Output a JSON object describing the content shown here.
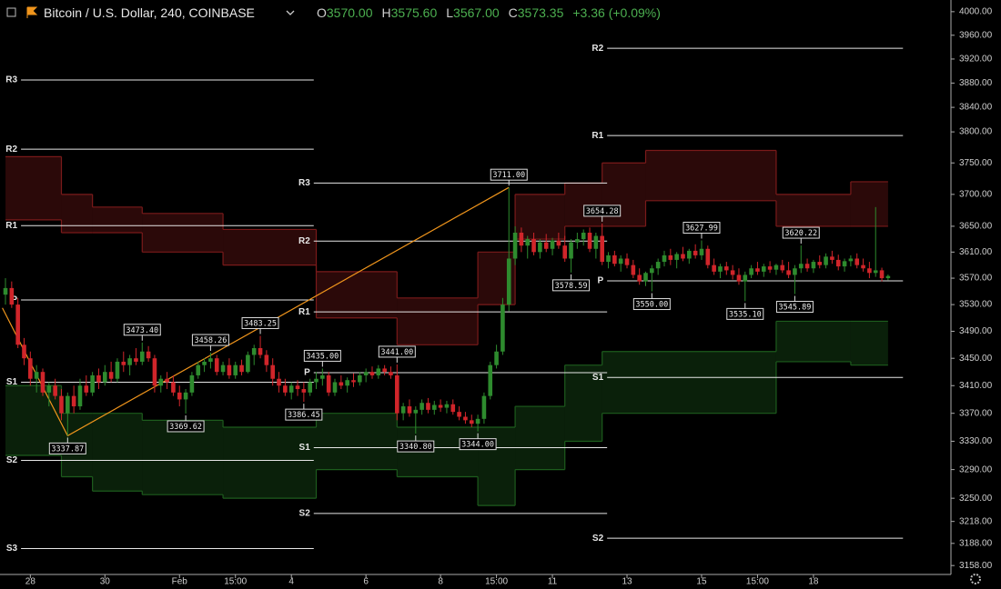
{
  "chart_data": {
    "type": "candlestick",
    "title": "Bitcoin / U.S. Dollar, 240, COINBASE",
    "legend_values": [
      {
        "label": "O",
        "value": "3570.00"
      },
      {
        "label": "H",
        "value": "3575.60"
      },
      {
        "label": "L",
        "value": "3567.00"
      },
      {
        "label": "C",
        "value": "3573.35"
      }
    ],
    "change": "+3.36 (+0.09%)",
    "log_scale": true,
    "up_color": "#2e8b2e",
    "down_color": "#d0252a",
    "zigzag_color": "#f0951c",
    "pivot_color": "#e6e6e6",
    "xlim": [
      -0.88,
      152.12
    ],
    "ylim": [
      3146,
      4020
    ],
    "yticks": [
      {
        "value": 4000,
        "label": "4000.00"
      },
      {
        "value": 3960,
        "label": "3960.00"
      },
      {
        "value": 3920,
        "label": "3920.00"
      },
      {
        "value": 3880,
        "label": "3880.00"
      },
      {
        "value": 3840,
        "label": "3840.00"
      },
      {
        "value": 3800,
        "label": "3800.00"
      },
      {
        "value": 3750,
        "label": "3750.00"
      },
      {
        "value": 3700,
        "label": "3700.00"
      },
      {
        "value": 3650,
        "label": "3650.00"
      },
      {
        "value": 3610,
        "label": "3610.00"
      },
      {
        "value": 3570,
        "label": "3570.00"
      },
      {
        "value": 3530,
        "label": "3530.00"
      },
      {
        "value": 3490,
        "label": "3490.00"
      },
      {
        "value": 3450,
        "label": "3450.00"
      },
      {
        "value": 3410,
        "label": "3410.00"
      },
      {
        "value": 3370,
        "label": "3370.00"
      },
      {
        "value": 3330,
        "label": "3330.00"
      },
      {
        "value": 3290,
        "label": "3290.00"
      },
      {
        "value": 3250,
        "label": "3250.00"
      },
      {
        "value": 3218,
        "label": "3218.00"
      },
      {
        "value": 3188,
        "label": "3188.00"
      },
      {
        "value": 3158,
        "label": "3158.00"
      }
    ],
    "xticks": [
      {
        "value": 4,
        "label": "28"
      },
      {
        "value": 16,
        "label": "30"
      },
      {
        "value": 28,
        "label": "Feb"
      },
      {
        "value": 37,
        "label": "15:00"
      },
      {
        "value": 46,
        "label": "4"
      },
      {
        "value": 58,
        "label": "6"
      },
      {
        "value": 70,
        "label": "8"
      },
      {
        "value": 79,
        "label": "15:00"
      },
      {
        "value": 88,
        "label": "11"
      },
      {
        "value": 100,
        "label": "13"
      },
      {
        "value": 112,
        "label": "15"
      },
      {
        "value": 121,
        "label": "15:00"
      },
      {
        "value": 130,
        "label": "18"
      }
    ],
    "candles": [
      [
        3545,
        3570,
        3530,
        3555
      ],
      [
        3555,
        3565,
        3525,
        3530
      ],
      [
        3530,
        3540,
        3465,
        3470
      ],
      [
        3470,
        3480,
        3440,
        3450
      ],
      [
        3450,
        3460,
        3410,
        3420
      ],
      [
        3420,
        3440,
        3400,
        3430
      ],
      [
        3430,
        3435,
        3395,
        3400
      ],
      [
        3400,
        3415,
        3380,
        3410
      ],
      [
        3410,
        3420,
        3390,
        3395
      ],
      [
        3395,
        3405,
        3360,
        3370
      ],
      [
        3370,
        3400,
        3337.87,
        3395
      ],
      [
        3395,
        3410,
        3370,
        3380
      ],
      [
        3380,
        3420,
        3375,
        3410
      ],
      [
        3410,
        3425,
        3395,
        3400
      ],
      [
        3400,
        3430,
        3395,
        3425
      ],
      [
        3425,
        3435,
        3405,
        3415
      ],
      [
        3415,
        3440,
        3410,
        3430
      ],
      [
        3430,
        3445,
        3415,
        3420
      ],
      [
        3420,
        3450,
        3415,
        3445
      ],
      [
        3445,
        3460,
        3430,
        3440
      ],
      [
        3440,
        3455,
        3425,
        3450
      ],
      [
        3450,
        3465,
        3440,
        3445
      ],
      [
        3445,
        3473.4,
        3440,
        3460
      ],
      [
        3460,
        3468,
        3445,
        3450
      ],
      [
        3450,
        3455,
        3400,
        3410
      ],
      [
        3410,
        3425,
        3400,
        3420
      ],
      [
        3420,
        3430,
        3405,
        3415
      ],
      [
        3415,
        3425,
        3395,
        3400
      ],
      [
        3400,
        3410,
        3380,
        3390
      ],
      [
        3390,
        3405,
        3369.62,
        3400
      ],
      [
        3400,
        3430,
        3395,
        3425
      ],
      [
        3425,
        3445,
        3420,
        3440
      ],
      [
        3440,
        3450,
        3430,
        3445
      ],
      [
        3445,
        3458.26,
        3435,
        3450
      ],
      [
        3450,
        3455,
        3425,
        3430
      ],
      [
        3430,
        3445,
        3425,
        3440
      ],
      [
        3440,
        3450,
        3420,
        3425
      ],
      [
        3425,
        3445,
        3420,
        3440
      ],
      [
        3440,
        3448,
        3425,
        3430
      ],
      [
        3430,
        3460,
        3428,
        3455
      ],
      [
        3455,
        3470,
        3440,
        3465
      ],
      [
        3465,
        3483.25,
        3450,
        3455
      ],
      [
        3455,
        3462,
        3430,
        3440
      ],
      [
        3440,
        3450,
        3410,
        3420
      ],
      [
        3420,
        3430,
        3400,
        3410
      ],
      [
        3410,
        3420,
        3395,
        3400
      ],
      [
        3400,
        3415,
        3390,
        3410
      ],
      [
        3410,
        3418,
        3395,
        3405
      ],
      [
        3405,
        3415,
        3386.45,
        3400
      ],
      [
        3400,
        3420,
        3395,
        3415
      ],
      [
        3415,
        3430,
        3405,
        3420
      ],
      [
        3420,
        3435,
        3410,
        3425
      ],
      [
        3425,
        3430,
        3395,
        3400
      ],
      [
        3400,
        3420,
        3395,
        3415
      ],
      [
        3415,
        3425,
        3405,
        3410
      ],
      [
        3410,
        3422,
        3400,
        3418
      ],
      [
        3418,
        3428,
        3408,
        3415
      ],
      [
        3415,
        3430,
        3410,
        3425
      ],
      [
        3425,
        3435,
        3415,
        3430
      ],
      [
        3430,
        3438,
        3420,
        3425
      ],
      [
        3425,
        3440,
        3420,
        3435
      ],
      [
        3435,
        3440,
        3425,
        3430
      ],
      [
        3430,
        3438,
        3420,
        3425
      ],
      [
        3425,
        3441,
        3360,
        3370
      ],
      [
        3370,
        3385,
        3360,
        3380
      ],
      [
        3380,
        3390,
        3365,
        3370
      ],
      [
        3370,
        3380,
        3340.8,
        3375
      ],
      [
        3375,
        3390,
        3368,
        3385
      ],
      [
        3385,
        3392,
        3370,
        3375
      ],
      [
        3375,
        3388,
        3368,
        3382
      ],
      [
        3382,
        3390,
        3372,
        3378
      ],
      [
        3378,
        3388,
        3370,
        3383
      ],
      [
        3383,
        3390,
        3368,
        3372
      ],
      [
        3372,
        3380,
        3360,
        3365
      ],
      [
        3365,
        3372,
        3355,
        3360
      ],
      [
        3360,
        3368,
        3350,
        3355
      ],
      [
        3355,
        3368,
        3344,
        3362
      ],
      [
        3362,
        3400,
        3355,
        3395
      ],
      [
        3395,
        3445,
        3390,
        3440
      ],
      [
        3440,
        3470,
        3435,
        3460
      ],
      [
        3460,
        3540,
        3455,
        3530
      ],
      [
        3530,
        3711,
        3520,
        3600
      ],
      [
        3600,
        3650,
        3590,
        3640
      ],
      [
        3640,
        3648,
        3610,
        3620
      ],
      [
        3620,
        3635,
        3600,
        3630
      ],
      [
        3630,
        3640,
        3605,
        3610
      ],
      [
        3610,
        3630,
        3600,
        3625
      ],
      [
        3625,
        3638,
        3610,
        3615
      ],
      [
        3615,
        3632,
        3605,
        3628
      ],
      [
        3628,
        3640,
        3615,
        3620
      ],
      [
        3620,
        3635,
        3595,
        3600
      ],
      [
        3600,
        3630,
        3578.59,
        3625
      ],
      [
        3625,
        3640,
        3615,
        3630
      ],
      [
        3630,
        3645,
        3620,
        3640
      ],
      [
        3640,
        3648,
        3610,
        3615
      ],
      [
        3615,
        3640,
        3600,
        3635
      ],
      [
        3635,
        3654.28,
        3590,
        3595
      ],
      [
        3595,
        3610,
        3585,
        3605
      ],
      [
        3605,
        3612,
        3588,
        3592
      ],
      [
        3592,
        3605,
        3580,
        3600
      ],
      [
        3600,
        3608,
        3585,
        3590
      ],
      [
        3590,
        3598,
        3570,
        3575
      ],
      [
        3575,
        3585,
        3560,
        3565
      ],
      [
        3565,
        3580,
        3558,
        3578
      ],
      [
        3578,
        3590,
        3550,
        3585
      ],
      [
        3585,
        3600,
        3575,
        3595
      ],
      [
        3595,
        3612,
        3588,
        3605
      ],
      [
        3605,
        3615,
        3590,
        3598
      ],
      [
        3598,
        3610,
        3585,
        3607
      ],
      [
        3607,
        3618,
        3596,
        3600
      ],
      [
        3600,
        3615,
        3592,
        3612
      ],
      [
        3612,
        3622,
        3600,
        3605
      ],
      [
        3605,
        3627.99,
        3598,
        3615
      ],
      [
        3615,
        3620,
        3585,
        3590
      ],
      [
        3590,
        3600,
        3575,
        3580
      ],
      [
        3580,
        3592,
        3570,
        3588
      ],
      [
        3588,
        3595,
        3575,
        3582
      ],
      [
        3582,
        3590,
        3568,
        3575
      ],
      [
        3575,
        3585,
        3560,
        3565
      ],
      [
        3565,
        3580,
        3535.1,
        3575
      ],
      [
        3575,
        3590,
        3570,
        3585
      ],
      [
        3585,
        3595,
        3575,
        3580
      ],
      [
        3580,
        3592,
        3572,
        3588
      ],
      [
        3588,
        3596,
        3578,
        3583
      ],
      [
        3583,
        3592,
        3575,
        3590
      ],
      [
        3590,
        3598,
        3578,
        3582
      ],
      [
        3582,
        3595,
        3570,
        3575
      ],
      [
        3575,
        3590,
        3545.89,
        3585
      ],
      [
        3585,
        3620.22,
        3578,
        3592
      ],
      [
        3592,
        3600,
        3580,
        3585
      ],
      [
        3585,
        3598,
        3578,
        3595
      ],
      [
        3595,
        3605,
        3585,
        3590
      ],
      [
        3590,
        3608,
        3585,
        3603
      ],
      [
        3603,
        3612,
        3592,
        3598
      ],
      [
        3598,
        3606,
        3582,
        3588
      ],
      [
        3588,
        3600,
        3580,
        3596
      ],
      [
        3596,
        3605,
        3588,
        3600
      ],
      [
        3600,
        3608,
        3585,
        3590
      ],
      [
        3590,
        3600,
        3580,
        3585
      ],
      [
        3585,
        3595,
        3570,
        3578
      ],
      [
        3578,
        3680,
        3572,
        3582
      ],
      [
        3582,
        3586,
        3565,
        3570
      ],
      [
        3570,
        3575.6,
        3567,
        3573.35
      ]
    ],
    "bands": [
      {
        "color": "#7a1a1a",
        "x": [
          0,
          9,
          14,
          22,
          35,
          50,
          63,
          76,
          82,
          90,
          96,
          103,
          124,
          136,
          142
        ],
        "upper": [
          3760,
          3700,
          3680,
          3670,
          3645,
          3580,
          3540,
          3610,
          3700,
          3718,
          3750,
          3770,
          3700,
          3720,
          3720
        ],
        "lower": [
          3660,
          3640,
          3640,
          3610,
          3590,
          3510,
          3470,
          3530,
          3630,
          3650,
          3650,
          3690,
          3650,
          3650,
          3650
        ]
      },
      {
        "color": "#1d5c1d",
        "x": [
          0,
          9,
          14,
          22,
          35,
          50,
          63,
          76,
          82,
          90,
          96,
          103,
          124,
          136,
          142
        ],
        "upper": [
          3410,
          3370,
          3370,
          3360,
          3350,
          3370,
          3350,
          3350,
          3380,
          3440,
          3460,
          3460,
          3505,
          3505,
          3505
        ],
        "lower": [
          3310,
          3280,
          3260,
          3255,
          3250,
          3290,
          3280,
          3240,
          3290,
          3330,
          3370,
          3370,
          3445,
          3440,
          3440
        ]
      }
    ],
    "zigzag": {
      "x": [
        -0.5,
        10,
        81
      ],
      "values": [
        3525,
        3337.87,
        3711
      ]
    },
    "pivot_sets": [
      {
        "x": [
          2.5,
          49.6
        ],
        "levels": [
          {
            "name": "R3",
            "value": 3885
          },
          {
            "name": "R2",
            "value": 3772
          },
          {
            "name": "R1",
            "value": 3651
          },
          {
            "name": "P",
            "value": 3537
          },
          {
            "name": "S1",
            "value": 3415
          },
          {
            "name": "S2",
            "value": 3303
          },
          {
            "name": "S3",
            "value": 3181
          }
        ]
      },
      {
        "x": [
          49.6,
          96.8
        ],
        "levels": [
          {
            "name": "R3",
            "value": 3718
          },
          {
            "name": "R2",
            "value": 3627
          },
          {
            "name": "R1",
            "value": 3519
          },
          {
            "name": "P",
            "value": 3429
          },
          {
            "name": "S1",
            "value": 3321
          },
          {
            "name": "S2",
            "value": 3229
          }
        ]
      },
      {
        "x": [
          96.8,
          144.4
        ],
        "levels": [
          {
            "name": "R2",
            "value": 3938
          },
          {
            "name": "R1",
            "value": 3794
          },
          {
            "name": "P",
            "value": 3566
          },
          {
            "name": "S1",
            "value": 3422
          },
          {
            "name": "S2",
            "value": 3195
          }
        ]
      }
    ],
    "hl_labels": {
      "x": [
        81,
        22,
        33,
        41,
        51,
        63,
        96,
        112,
        128,
        10,
        29,
        48,
        66,
        76,
        91,
        104,
        119,
        127
      ],
      "values": [
        3711,
        3473.4,
        3458.26,
        3483.25,
        3435,
        3441,
        3654.28,
        3627.99,
        3620.22,
        3337.87,
        3369.62,
        3386.45,
        3340.8,
        3344,
        3578.59,
        3550,
        3535.1,
        3545.89
      ],
      "value_labels": [
        "3711.00",
        "3473.40",
        "3458.26",
        "3483.25",
        "3435.00",
        "3441.00",
        "3654.28",
        "3627.99",
        "3620.22",
        "3337.87",
        "3369.62",
        "3386.45",
        "3340.80",
        "3344.00",
        "3578.59",
        "3550.00",
        "3535.10",
        "3545.89"
      ]
    }
  }
}
